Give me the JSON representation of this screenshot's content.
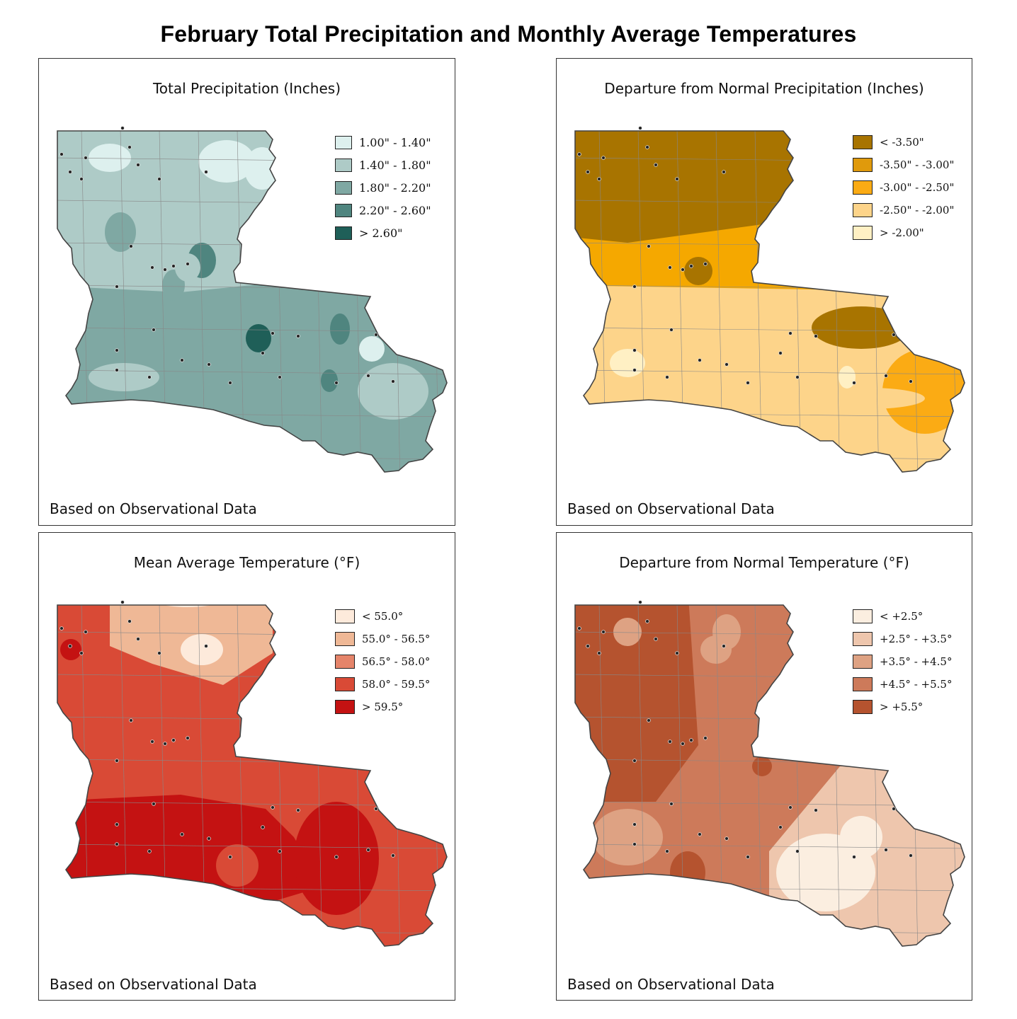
{
  "title": "February Total Precipitation and Monthly Average Temperatures",
  "panels": [
    {
      "id": "precip",
      "title": "Total Precipitation (Inches)",
      "footer": "Based on Observational Data",
      "base_color": "#7fa8a3",
      "legend": [
        {
          "label": "1.00\" - 1.40\"",
          "color": "#ddf0ee"
        },
        {
          "label": "1.40\" - 1.80\"",
          "color": "#aecbc7"
        },
        {
          "label": "1.80\" - 2.20\"",
          "color": "#7fa8a3"
        },
        {
          "label": "2.20\" - 2.60\"",
          "color": "#4f857f"
        },
        {
          "label": "> 2.60\"",
          "color": "#1f5f58"
        }
      ]
    },
    {
      "id": "precip-departure",
      "title": "Departure from Normal Precipitation (Inches)",
      "footer": "Based on Observational Data",
      "base_color": "#f5a800",
      "legend": [
        {
          "label": "< -3.50\"",
          "color": "#a87400"
        },
        {
          "label": "-3.50\" - -3.00\"",
          "color": "#e09a0c"
        },
        {
          "label": "-3.00\" - -2.50\"",
          "color": "#fbab14"
        },
        {
          "label": "-2.50\" - -2.00\"",
          "color": "#fdd48a"
        },
        {
          "label": "> -2.00\"",
          "color": "#fff0c4"
        }
      ]
    },
    {
      "id": "temperature",
      "title": "Mean Average Temperature (°F)",
      "footer": "Based on Observational Data",
      "base_color": "#d94a36",
      "legend": [
        {
          "label": "< 55.0°",
          "color": "#fdeadb"
        },
        {
          "label": "55.0° - 56.5°",
          "color": "#efb896"
        },
        {
          "label": "56.5° - 58.0°",
          "color": "#e5846a"
        },
        {
          "label": "58.0° - 59.5°",
          "color": "#d94a36"
        },
        {
          "label": "> 59.5°",
          "color": "#c41212"
        }
      ]
    },
    {
      "id": "temperature-departure",
      "title": "Departure from Normal Temperature (°F)",
      "footer": "Based on Observational Data",
      "base_color": "#cd7a5a",
      "legend": [
        {
          "label": "< +2.5°",
          "color": "#fbeee0"
        },
        {
          "label": "+2.5° - +3.5°",
          "color": "#eec6ad"
        },
        {
          "label": "+3.5° - +4.5°",
          "color": "#dea283"
        },
        {
          "label": "+4.5° - +5.5°",
          "color": "#cd7a5a"
        },
        {
          "label": "> +5.5°",
          "color": "#b5532f"
        }
      ]
    }
  ]
}
